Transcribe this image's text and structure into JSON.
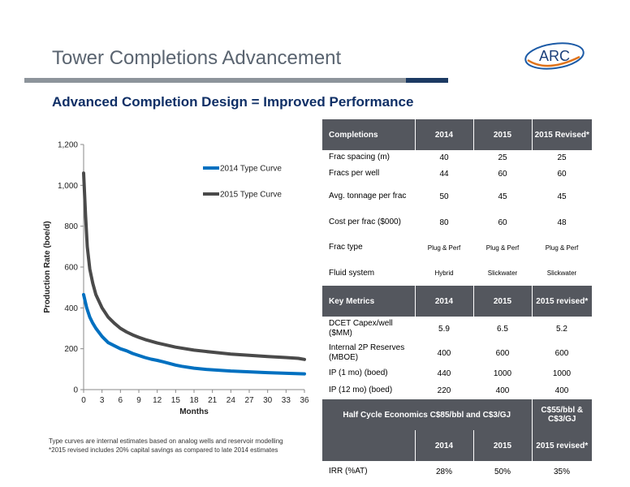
{
  "header": {
    "title": "Tower Completions Advancement",
    "subtitle": "Advanced Completion Design = Improved Performance",
    "logo_text": "ARC"
  },
  "colors": {
    "accent_blue": "#0070c0",
    "series_dark": "#4a4a4a",
    "header_gray": "#54575e",
    "title_navy": "#0f2f66"
  },
  "footnotes": [
    "Type curves are internal estimates based on analog wells and reservoir modelling",
    "*2015 revised includes 20% capital savings as compared to late 2014 estimates"
  ],
  "chart_data": {
    "type": "line",
    "xlabel": "Months",
    "ylabel": "Production Rate (boe/d)",
    "xlim": [
      0,
      36
    ],
    "ylim": [
      0,
      1200
    ],
    "xticks": [
      0,
      3,
      6,
      9,
      12,
      15,
      18,
      21,
      24,
      27,
      30,
      33,
      36
    ],
    "yticks": [
      0,
      200,
      400,
      600,
      800,
      1000,
      1200
    ],
    "ytick_labels": [
      "0",
      "200",
      "400",
      "600",
      "800",
      "1,000",
      "1,200"
    ],
    "legend_position": "top-right",
    "grid": false,
    "series": [
      {
        "name": "2014 Type Curve",
        "color": "#0070c0",
        "x": [
          0,
          0.5,
          1,
          1.5,
          2,
          3,
          4,
          5,
          6,
          7,
          8,
          9,
          10,
          11,
          12,
          13,
          14,
          15,
          16,
          18,
          20,
          22,
          24,
          27,
          30,
          33,
          36
        ],
        "y": [
          465,
          400,
          355,
          325,
          300,
          260,
          230,
          215,
          200,
          190,
          177,
          167,
          157,
          149,
          143,
          136,
          128,
          120,
          114,
          105,
          99,
          95,
          91,
          87,
          83,
          80,
          77
        ]
      },
      {
        "name": "2015 Type Curve",
        "color": "#4a4a4a",
        "x": [
          0,
          0.3,
          0.6,
          1,
          1.5,
          2,
          3,
          4,
          5,
          6,
          7,
          8,
          9,
          10,
          12,
          15,
          18,
          21,
          24,
          27,
          30,
          33,
          35,
          36
        ],
        "y": [
          1060,
          860,
          700,
          590,
          520,
          465,
          400,
          355,
          325,
          300,
          282,
          268,
          256,
          245,
          228,
          208,
          193,
          183,
          174,
          168,
          162,
          157,
          153,
          148
        ]
      }
    ]
  },
  "tables": {
    "completions": {
      "headers": [
        "Completions",
        "2014",
        "2015",
        "2015 Revised*"
      ],
      "rows": [
        [
          "Frac spacing (m)",
          "40",
          "25",
          "25"
        ],
        [
          "Fracs per well",
          "44",
          "60",
          "60"
        ],
        [
          "Avg. tonnage per frac",
          "50",
          "45",
          "45"
        ],
        [
          "Cost per frac ($000)",
          "80",
          "60",
          "48"
        ],
        [
          "Frac type",
          "Plug & Perf",
          "Plug & Perf",
          "Plug & Perf"
        ],
        [
          "Fluid system",
          "Hybrid",
          "Slickwater",
          "Slickwater"
        ]
      ]
    },
    "key_metrics": {
      "headers": [
        "Key Metrics",
        "2014",
        "2015",
        "2015 revised*"
      ],
      "rows": [
        [
          "DCET Capex/well ($MM)",
          "5.9",
          "6.5",
          "5.2"
        ],
        [
          "Internal 2P Reserves (MBOE)",
          "400",
          "600",
          "600"
        ],
        [
          "IP (1 mo) (boed)",
          "440",
          "1000",
          "1000"
        ],
        [
          "IP (12 mo) (boed)",
          "220",
          "400",
          "400"
        ]
      ]
    },
    "economics": {
      "header_main": "Half Cycle Economics C$85/bbl and C$3/GJ",
      "header_alt": "C$55/bbl & C$3/GJ",
      "subheaders": [
        "",
        "2014",
        "2015",
        "2015 revised*"
      ],
      "rows": [
        [
          "IRR (%AT)",
          "28%",
          "50%",
          "35%"
        ]
      ]
    }
  }
}
